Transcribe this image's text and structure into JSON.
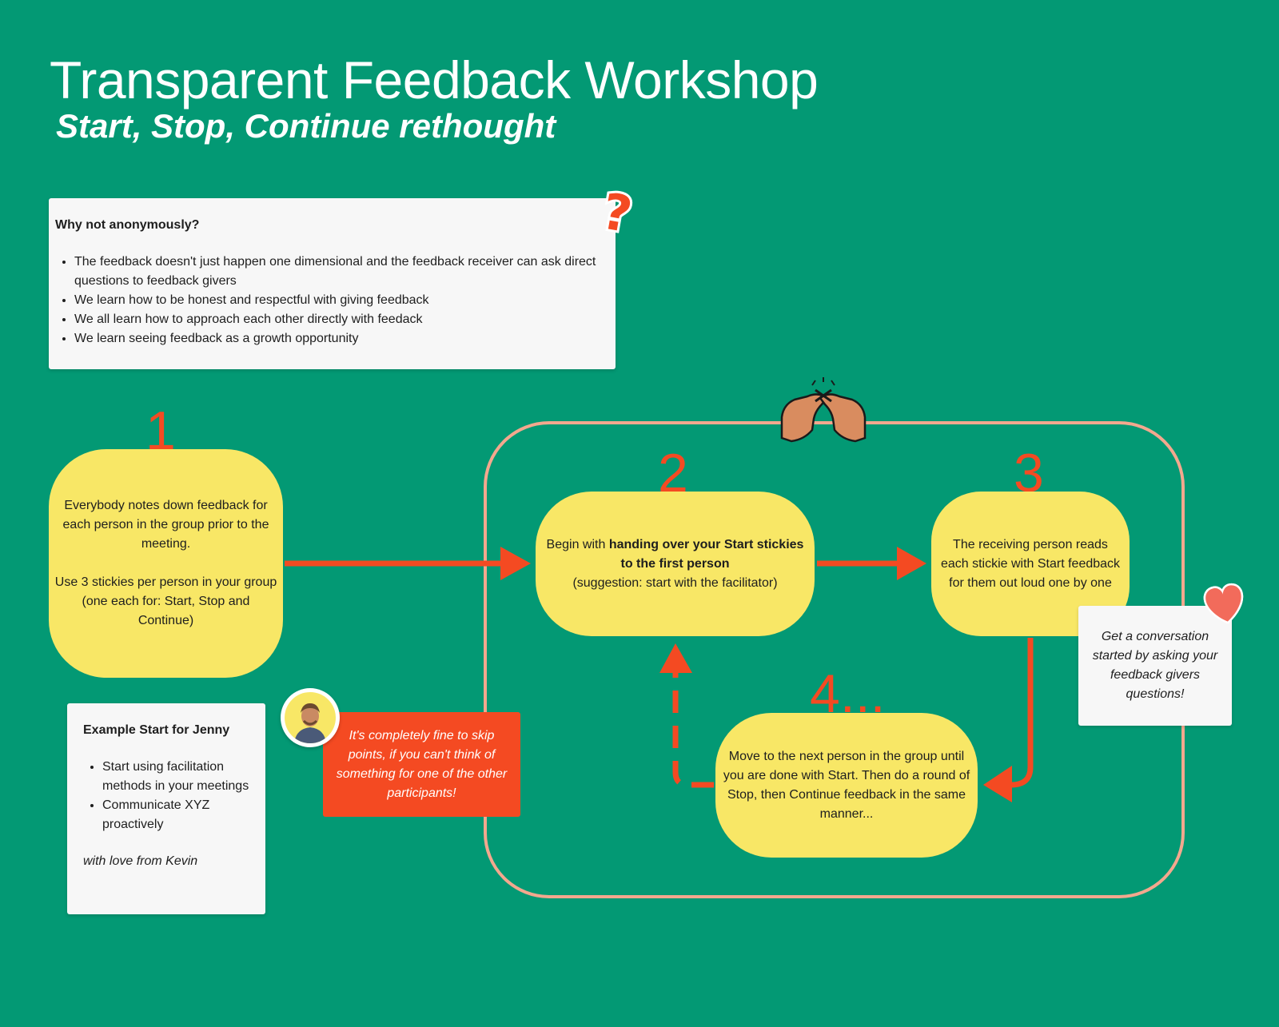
{
  "header": {
    "title": "Transparent Feedback Workshop",
    "subtitle": "Start, Stop, Continue rethought"
  },
  "why_note": {
    "heading": "Why not anonymously?",
    "items": [
      "The feedback doesn't just happen one dimensional and the feedback receiver can ask direct questions to feedback givers",
      "We learn how to be honest and respectful with giving feedback",
      "We all learn how to approach each other directly with feedack",
      "We learn seeing feedback as a growth opportunity"
    ]
  },
  "steps": {
    "step1": {
      "number": "1",
      "text_a": "Everybody notes down feedback for each person in the group prior to the meeting.",
      "text_b": "Use 3 stickies per person in your group (one each for: Start, Stop and Continue)"
    },
    "step2": {
      "number": "2",
      "text_pre": "Begin with ",
      "text_bold": "handing over your Start stickies to the first person",
      "text_post": "(suggestion: start with the facilitator)"
    },
    "step3": {
      "number": "3",
      "text": "The receiving person reads each stickie with Start feedback for them out loud one by one"
    },
    "step4": {
      "number": "4...",
      "text": "Move to the next person in the group until you are done with Start. Then do a round of  Stop, then Continue feedback in the same manner..."
    }
  },
  "example_note": {
    "heading": "Example Start for Jenny",
    "items": [
      "Start using facilitation methods in your meetings",
      "Communicate XYZ proactively"
    ],
    "signature": "with love from Kevin"
  },
  "tip_note": {
    "text": "It's completely fine to skip points, if you can't think of something for one of the other participants!"
  },
  "conversation_note": {
    "text": "Get a conversation started by asking your feedback givers questions!"
  },
  "colors": {
    "background": "#039974",
    "sticky_yellow": "#f8e766",
    "accent_orange": "#f44a22",
    "loop_outline": "#f3a88e",
    "note_white": "#f7f7f7",
    "heart": "#f26b5b"
  },
  "icons": [
    "question-mark-icon",
    "pinky-promise-hands-icon",
    "heart-icon",
    "avatar-kevin"
  ]
}
